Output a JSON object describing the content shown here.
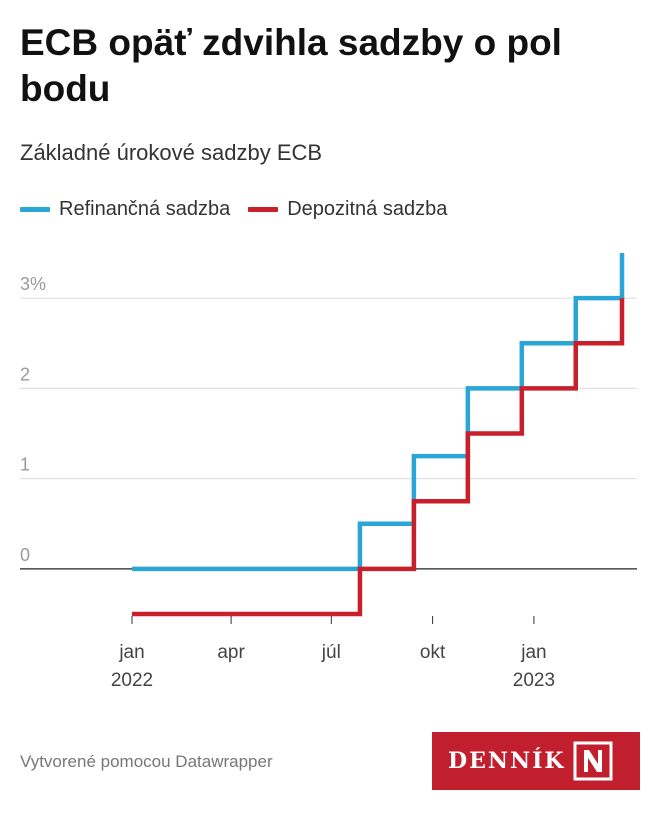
{
  "header": {
    "title": "ECB opäť zdvihla sadzby o pol bodu",
    "subtitle": "Základné úrokové sadzby ECB"
  },
  "footer": {
    "credit": "Vytvorené pomocou Datawrapper",
    "logo_text": "DENNÍK",
    "logo_mark_letter": "N"
  },
  "colors": {
    "refinancing": "#2aa6d6",
    "deposit": "#c91f2a",
    "logo_bg": "#c21f2e"
  },
  "chart_data": {
    "type": "line",
    "step": true,
    "title": "ECB opäť zdvihla sadzby o pol bodu",
    "subtitle": "Základné úrokové sadzby ECB",
    "legend_position": "top-left",
    "grid": true,
    "ylim": [
      -0.5,
      3.5
    ],
    "y_ticks": [
      0,
      1,
      2,
      3
    ],
    "y_tick_labels": [
      "0",
      "1",
      "2",
      "3%"
    ],
    "x_ticks": [
      {
        "date": "2022-01-01",
        "label": "jan",
        "sublabel": "2022"
      },
      {
        "date": "2022-04-01",
        "label": "apr",
        "sublabel": ""
      },
      {
        "date": "2022-07-01",
        "label": "júl",
        "sublabel": ""
      },
      {
        "date": "2022-10-01",
        "label": "okt",
        "sublabel": ""
      },
      {
        "date": "2023-01-01",
        "label": "jan",
        "sublabel": "2023"
      }
    ],
    "xlim": [
      "2022-01-01",
      "2023-03-22"
    ],
    "series": [
      {
        "name": "Refinančná sadzba",
        "color": "#2aa6d6",
        "points": [
          {
            "x": "2022-01-01",
            "y": 0
          },
          {
            "x": "2022-07-27",
            "y": 0.5
          },
          {
            "x": "2022-09-14",
            "y": 1.25
          },
          {
            "x": "2022-11-02",
            "y": 2.0
          },
          {
            "x": "2022-12-21",
            "y": 2.5
          },
          {
            "x": "2023-02-08",
            "y": 3.0
          },
          {
            "x": "2023-03-22",
            "y": 3.5
          }
        ]
      },
      {
        "name": "Depozitná sadzba",
        "color": "#c91f2a",
        "points": [
          {
            "x": "2022-01-01",
            "y": -0.5
          },
          {
            "x": "2022-07-27",
            "y": 0
          },
          {
            "x": "2022-09-14",
            "y": 0.75
          },
          {
            "x": "2022-11-02",
            "y": 1.5
          },
          {
            "x": "2022-12-21",
            "y": 2.0
          },
          {
            "x": "2023-02-08",
            "y": 2.5
          },
          {
            "x": "2023-03-22",
            "y": 3.0
          }
        ]
      }
    ]
  }
}
